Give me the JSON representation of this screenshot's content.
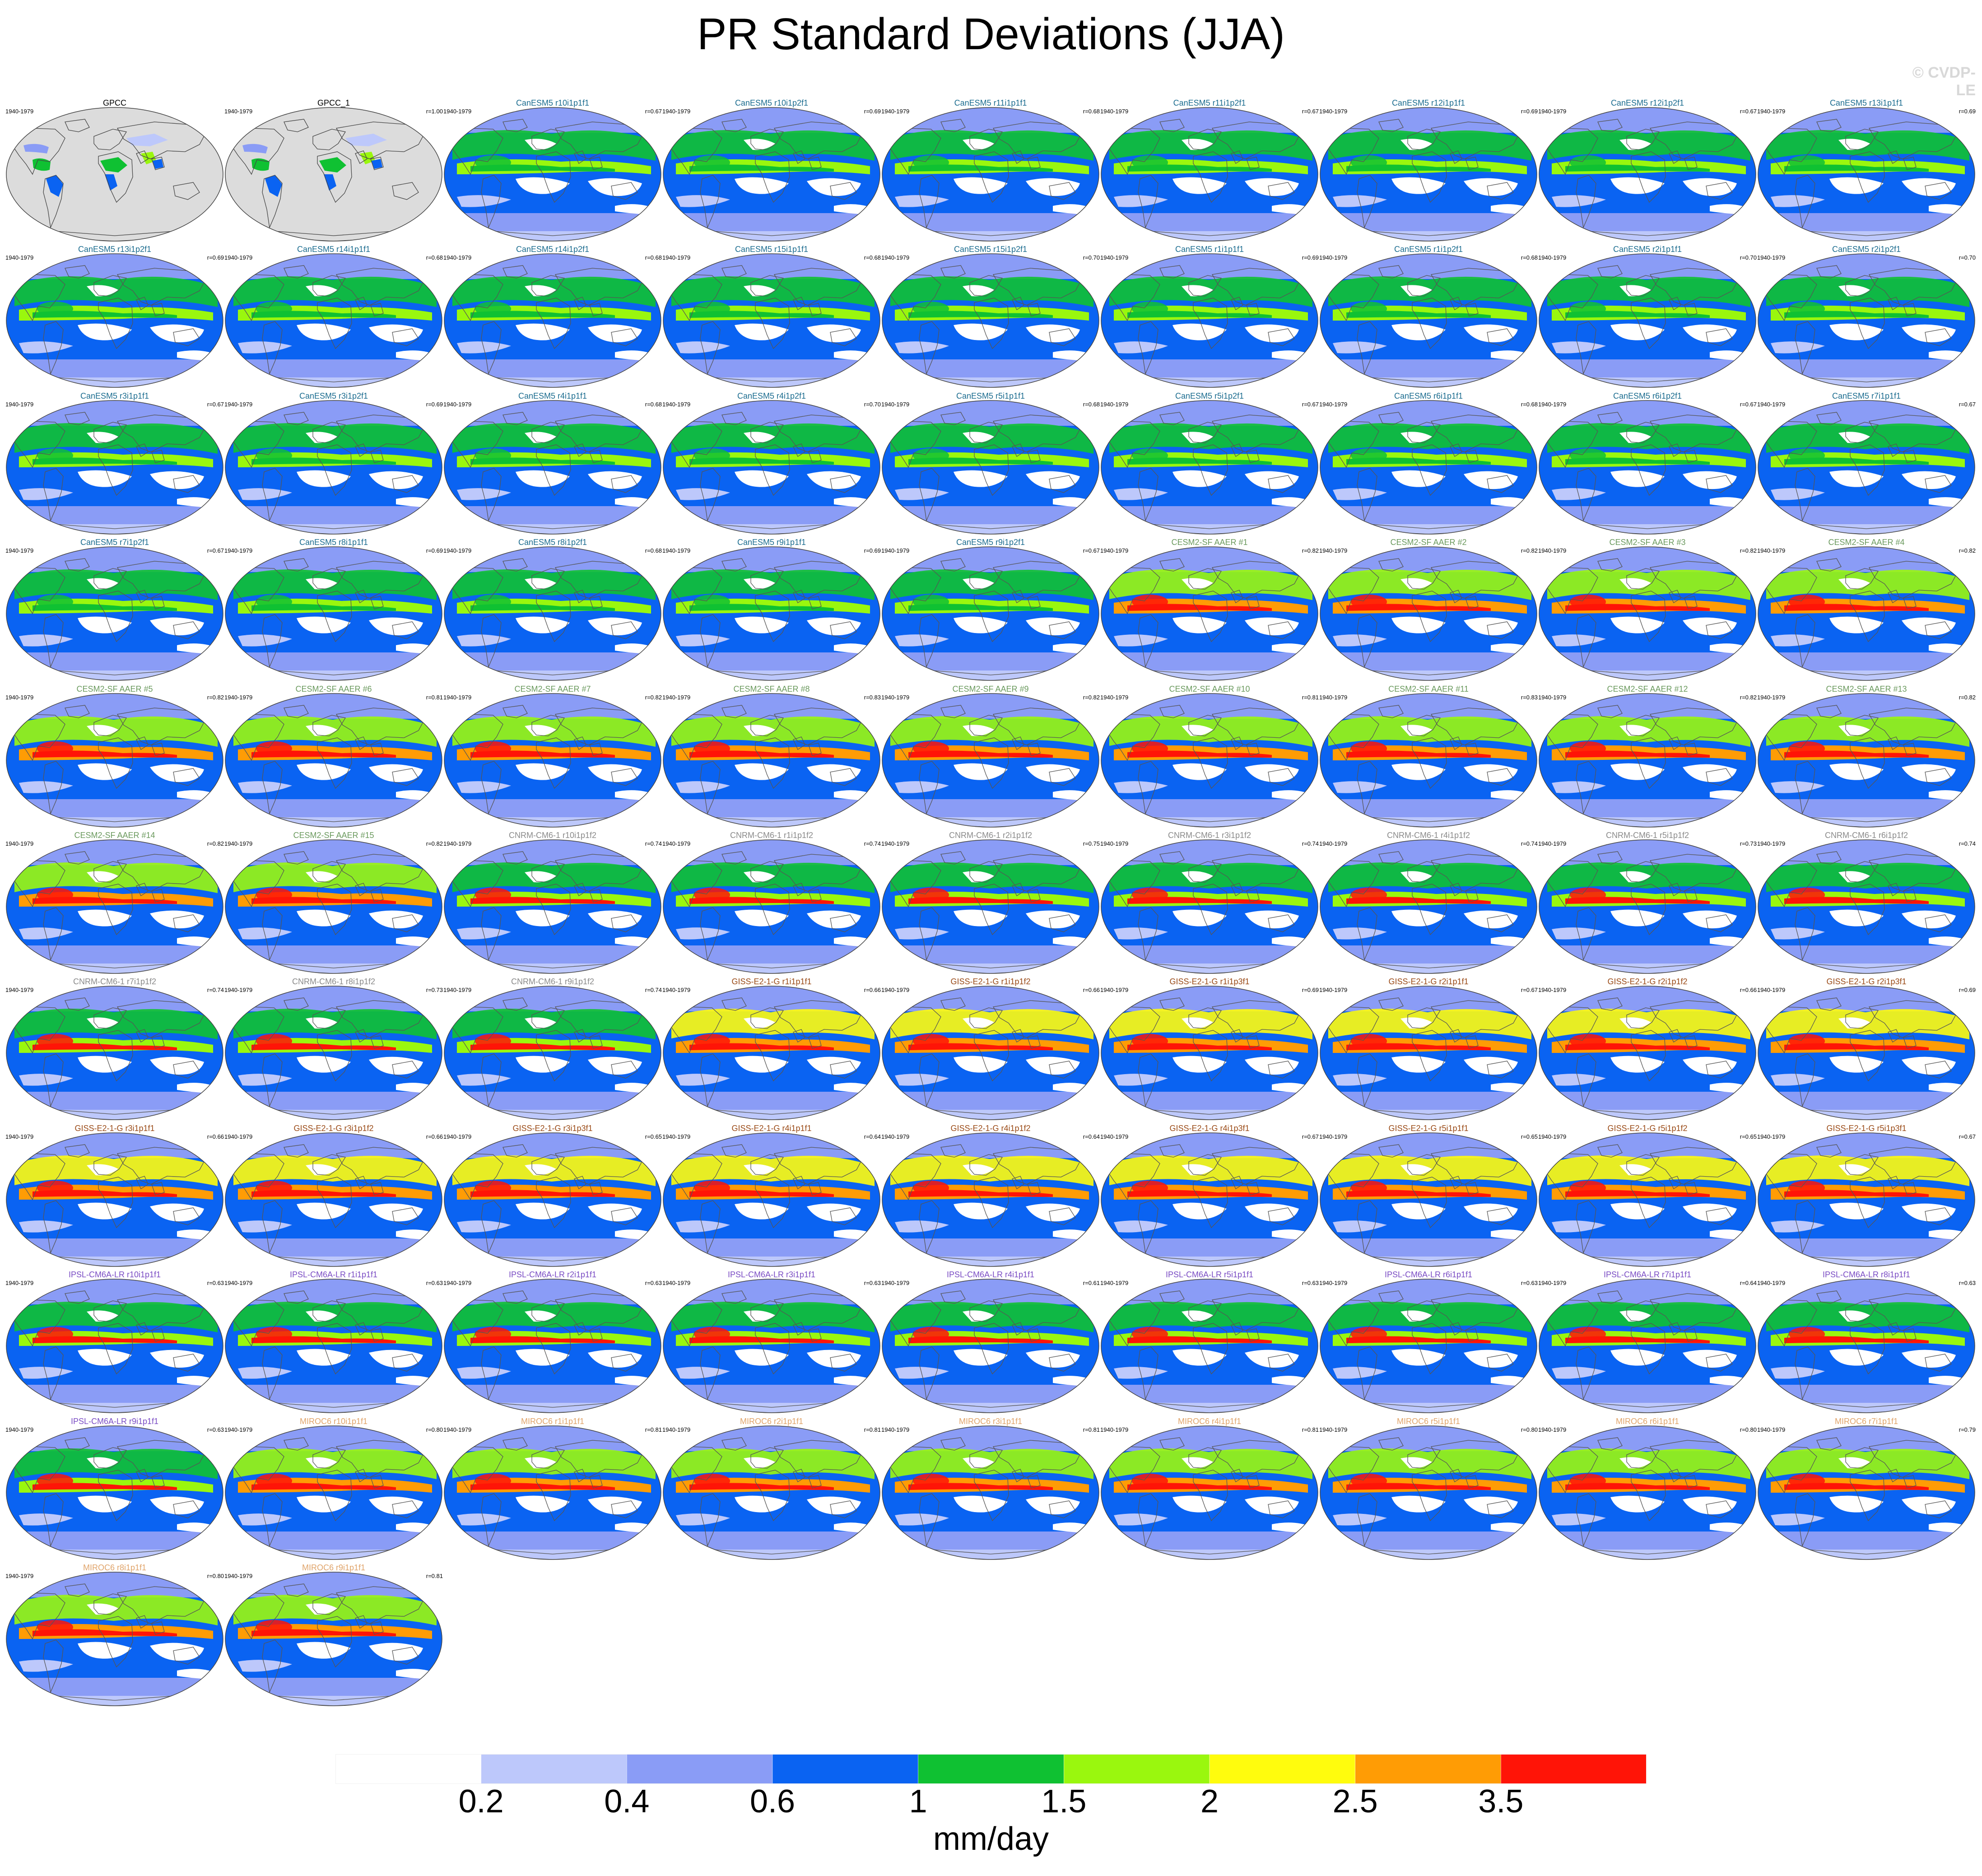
{
  "title": "PR Standard Deviations (JJA)",
  "watermark": "© CVDP-LE",
  "period": "1940-1979",
  "colorbar": {
    "colors": [
      "#ffffff",
      "#bdc8fb",
      "#8a9cf6",
      "#0a63f2",
      "#0fc132",
      "#9af70e",
      "#fffc0d",
      "#ff9c05",
      "#ff1407"
    ],
    "labels": [
      "0.2",
      "0.4",
      "0.6",
      "1",
      "1.5",
      "2",
      "2.5",
      "3.5"
    ],
    "units": "mm/day"
  },
  "model_colors": {
    "obs": "#000000",
    "CanESM5": "#1b6c8f",
    "CESM2-SF AAER": "#6b9a5e",
    "CNRM-CM6-1": "#8a8a8a",
    "GISS-E2-1-G": "#9a4a16",
    "IPSL-CM6A-LR": "#7a4cc4",
    "MIROC6": "#e0a46a"
  },
  "panels": [
    {
      "title": "GPCC",
      "corr": "",
      "group": "obs",
      "style": "obs"
    },
    {
      "title": "GPCC_1",
      "corr": "r=1.00",
      "group": "obs",
      "style": "obs"
    },
    {
      "title": "CanESM5 r10i1p1f1",
      "corr": "r=0.67",
      "group": "CanESM5",
      "style": "can"
    },
    {
      "title": "CanESM5 r10i1p2f1",
      "corr": "r=0.69",
      "group": "CanESM5",
      "style": "can"
    },
    {
      "title": "CanESM5 r11i1p1f1",
      "corr": "r=0.68",
      "group": "CanESM5",
      "style": "can"
    },
    {
      "title": "CanESM5 r11i1p2f1",
      "corr": "r=0.67",
      "group": "CanESM5",
      "style": "can"
    },
    {
      "title": "CanESM5 r12i1p1f1",
      "corr": "r=0.69",
      "group": "CanESM5",
      "style": "can"
    },
    {
      "title": "CanESM5 r12i1p2f1",
      "corr": "r=0.67",
      "group": "CanESM5",
      "style": "can"
    },
    {
      "title": "CanESM5 r13i1p1f1",
      "corr": "r=0.69",
      "group": "CanESM5",
      "style": "can"
    },
    {
      "title": "CanESM5 r13i1p2f1",
      "corr": "r=0.69",
      "group": "CanESM5",
      "style": "can"
    },
    {
      "title": "CanESM5 r14i1p1f1",
      "corr": "r=0.68",
      "group": "CanESM5",
      "style": "can"
    },
    {
      "title": "CanESM5 r14i1p2f1",
      "corr": "r=0.68",
      "group": "CanESM5",
      "style": "can"
    },
    {
      "title": "CanESM5 r15i1p1f1",
      "corr": "r=0.68",
      "group": "CanESM5",
      "style": "can"
    },
    {
      "title": "CanESM5 r15i1p2f1",
      "corr": "r=0.70",
      "group": "CanESM5",
      "style": "can"
    },
    {
      "title": "CanESM5 r1i1p1f1",
      "corr": "r=0.69",
      "group": "CanESM5",
      "style": "can"
    },
    {
      "title": "CanESM5 r1i1p2f1",
      "corr": "r=0.68",
      "group": "CanESM5",
      "style": "can"
    },
    {
      "title": "CanESM5 r2i1p1f1",
      "corr": "r=0.70",
      "group": "CanESM5",
      "style": "can"
    },
    {
      "title": "CanESM5 r2i1p2f1",
      "corr": "r=0.70",
      "group": "CanESM5",
      "style": "can"
    },
    {
      "title": "CanESM5 r3i1p1f1",
      "corr": "r=0.67",
      "group": "CanESM5",
      "style": "can"
    },
    {
      "title": "CanESM5 r3i1p2f1",
      "corr": "r=0.69",
      "group": "CanESM5",
      "style": "can"
    },
    {
      "title": "CanESM5 r4i1p1f1",
      "corr": "r=0.68",
      "group": "CanESM5",
      "style": "can"
    },
    {
      "title": "CanESM5 r4i1p2f1",
      "corr": "r=0.70",
      "group": "CanESM5",
      "style": "can"
    },
    {
      "title": "CanESM5 r5i1p1f1",
      "corr": "r=0.68",
      "group": "CanESM5",
      "style": "can"
    },
    {
      "title": "CanESM5 r5i1p2f1",
      "corr": "r=0.67",
      "group": "CanESM5",
      "style": "can"
    },
    {
      "title": "CanESM5 r6i1p1f1",
      "corr": "r=0.68",
      "group": "CanESM5",
      "style": "can"
    },
    {
      "title": "CanESM5 r6i1p2f1",
      "corr": "r=0.67",
      "group": "CanESM5",
      "style": "can"
    },
    {
      "title": "CanESM5 r7i1p1f1",
      "corr": "r=0.67",
      "group": "CanESM5",
      "style": "can"
    },
    {
      "title": "CanESM5 r7i1p2f1",
      "corr": "r=0.67",
      "group": "CanESM5",
      "style": "can"
    },
    {
      "title": "CanESM5 r8i1p1f1",
      "corr": "r=0.69",
      "group": "CanESM5",
      "style": "can"
    },
    {
      "title": "CanESM5 r8i1p2f1",
      "corr": "r=0.68",
      "group": "CanESM5",
      "style": "can"
    },
    {
      "title": "CanESM5 r9i1p1f1",
      "corr": "r=0.69",
      "group": "CanESM5",
      "style": "can"
    },
    {
      "title": "CanESM5 r9i1p2f1",
      "corr": "r=0.67",
      "group": "CanESM5",
      "style": "can"
    },
    {
      "title": "CESM2-SF AAER #1",
      "corr": "r=0.82",
      "group": "CESM2-SF AAER",
      "style": "cesm"
    },
    {
      "title": "CESM2-SF AAER #2",
      "corr": "r=0.82",
      "group": "CESM2-SF AAER",
      "style": "cesm"
    },
    {
      "title": "CESM2-SF AAER #3",
      "corr": "r=0.82",
      "group": "CESM2-SF AAER",
      "style": "cesm"
    },
    {
      "title": "CESM2-SF AAER #4",
      "corr": "r=0.82",
      "group": "CESM2-SF AAER",
      "style": "cesm"
    },
    {
      "title": "CESM2-SF AAER #5",
      "corr": "r=0.82",
      "group": "CESM2-SF AAER",
      "style": "cesm"
    },
    {
      "title": "CESM2-SF AAER #6",
      "corr": "r=0.81",
      "group": "CESM2-SF AAER",
      "style": "cesm"
    },
    {
      "title": "CESM2-SF AAER #7",
      "corr": "r=0.82",
      "group": "CESM2-SF AAER",
      "style": "cesm"
    },
    {
      "title": "CESM2-SF AAER #8",
      "corr": "r=0.83",
      "group": "CESM2-SF AAER",
      "style": "cesm"
    },
    {
      "title": "CESM2-SF AAER #9",
      "corr": "r=0.82",
      "group": "CESM2-SF AAER",
      "style": "cesm"
    },
    {
      "title": "CESM2-SF AAER #10",
      "corr": "r=0.81",
      "group": "CESM2-SF AAER",
      "style": "cesm"
    },
    {
      "title": "CESM2-SF AAER #11",
      "corr": "r=0.83",
      "group": "CESM2-SF AAER",
      "style": "cesm"
    },
    {
      "title": "CESM2-SF AAER #12",
      "corr": "r=0.82",
      "group": "CESM2-SF AAER",
      "style": "cesm"
    },
    {
      "title": "CESM2-SF AAER #13",
      "corr": "r=0.82",
      "group": "CESM2-SF AAER",
      "style": "cesm"
    },
    {
      "title": "CESM2-SF AAER #14",
      "corr": "r=0.82",
      "group": "CESM2-SF AAER",
      "style": "cesm"
    },
    {
      "title": "CESM2-SF AAER #15",
      "corr": "r=0.82",
      "group": "CESM2-SF AAER",
      "style": "cesm"
    },
    {
      "title": "CNRM-CM6-1 r10i1p1f2",
      "corr": "r=0.74",
      "group": "CNRM-CM6-1",
      "style": "cnrm"
    },
    {
      "title": "CNRM-CM6-1 r1i1p1f2",
      "corr": "r=0.74",
      "group": "CNRM-CM6-1",
      "style": "cnrm"
    },
    {
      "title": "CNRM-CM6-1 r2i1p1f2",
      "corr": "r=0.75",
      "group": "CNRM-CM6-1",
      "style": "cnrm"
    },
    {
      "title": "CNRM-CM6-1 r3i1p1f2",
      "corr": "r=0.74",
      "group": "CNRM-CM6-1",
      "style": "cnrm"
    },
    {
      "title": "CNRM-CM6-1 r4i1p1f2",
      "corr": "r=0.74",
      "group": "CNRM-CM6-1",
      "style": "cnrm"
    },
    {
      "title": "CNRM-CM6-1 r5i1p1f2",
      "corr": "r=0.73",
      "group": "CNRM-CM6-1",
      "style": "cnrm"
    },
    {
      "title": "CNRM-CM6-1 r6i1p1f2",
      "corr": "r=0.74",
      "group": "CNRM-CM6-1",
      "style": "cnrm"
    },
    {
      "title": "CNRM-CM6-1 r7i1p1f2",
      "corr": "r=0.74",
      "group": "CNRM-CM6-1",
      "style": "cnrm"
    },
    {
      "title": "CNRM-CM6-1 r8i1p1f2",
      "corr": "r=0.73",
      "group": "CNRM-CM6-1",
      "style": "cnrm"
    },
    {
      "title": "CNRM-CM6-1 r9i1p1f2",
      "corr": "r=0.74",
      "group": "CNRM-CM6-1",
      "style": "cnrm"
    },
    {
      "title": "GISS-E2-1-G r1i1p1f1",
      "corr": "r=0.66",
      "group": "GISS-E2-1-G",
      "style": "giss"
    },
    {
      "title": "GISS-E2-1-G r1i1p1f2",
      "corr": "r=0.66",
      "group": "GISS-E2-1-G",
      "style": "giss"
    },
    {
      "title": "GISS-E2-1-G r1i1p3f1",
      "corr": "r=0.69",
      "group": "GISS-E2-1-G",
      "style": "giss"
    },
    {
      "title": "GISS-E2-1-G r2i1p1f1",
      "corr": "r=0.67",
      "group": "GISS-E2-1-G",
      "style": "giss"
    },
    {
      "title": "GISS-E2-1-G r2i1p1f2",
      "corr": "r=0.66",
      "group": "GISS-E2-1-G",
      "style": "giss"
    },
    {
      "title": "GISS-E2-1-G r2i1p3f1",
      "corr": "r=0.69",
      "group": "GISS-E2-1-G",
      "style": "giss"
    },
    {
      "title": "GISS-E2-1-G r3i1p1f1",
      "corr": "r=0.66",
      "group": "GISS-E2-1-G",
      "style": "giss"
    },
    {
      "title": "GISS-E2-1-G r3i1p1f2",
      "corr": "r=0.66",
      "group": "GISS-E2-1-G",
      "style": "giss"
    },
    {
      "title": "GISS-E2-1-G r3i1p3f1",
      "corr": "r=0.65",
      "group": "GISS-E2-1-G",
      "style": "giss"
    },
    {
      "title": "GISS-E2-1-G r4i1p1f1",
      "corr": "r=0.64",
      "group": "GISS-E2-1-G",
      "style": "giss"
    },
    {
      "title": "GISS-E2-1-G r4i1p1f2",
      "corr": "r=0.64",
      "group": "GISS-E2-1-G",
      "style": "giss"
    },
    {
      "title": "GISS-E2-1-G r4i1p3f1",
      "corr": "r=0.67",
      "group": "GISS-E2-1-G",
      "style": "giss"
    },
    {
      "title": "GISS-E2-1-G r5i1p1f1",
      "corr": "r=0.65",
      "group": "GISS-E2-1-G",
      "style": "giss"
    },
    {
      "title": "GISS-E2-1-G r5i1p1f2",
      "corr": "r=0.65",
      "group": "GISS-E2-1-G",
      "style": "giss"
    },
    {
      "title": "GISS-E2-1-G r5i1p3f1",
      "corr": "r=0.67",
      "group": "GISS-E2-1-G",
      "style": "giss"
    },
    {
      "title": "IPSL-CM6A-LR r10i1p1f1",
      "corr": "r=0.63",
      "group": "IPSL-CM6A-LR",
      "style": "ipsl"
    },
    {
      "title": "IPSL-CM6A-LR r1i1p1f1",
      "corr": "r=0.63",
      "group": "IPSL-CM6A-LR",
      "style": "ipsl"
    },
    {
      "title": "IPSL-CM6A-LR r2i1p1f1",
      "corr": "r=0.63",
      "group": "IPSL-CM6A-LR",
      "style": "ipsl"
    },
    {
      "title": "IPSL-CM6A-LR r3i1p1f1",
      "corr": "r=0.63",
      "group": "IPSL-CM6A-LR",
      "style": "ipsl"
    },
    {
      "title": "IPSL-CM6A-LR r4i1p1f1",
      "corr": "r=0.61",
      "group": "IPSL-CM6A-LR",
      "style": "ipsl"
    },
    {
      "title": "IPSL-CM6A-LR r5i1p1f1",
      "corr": "r=0.63",
      "group": "IPSL-CM6A-LR",
      "style": "ipsl"
    },
    {
      "title": "IPSL-CM6A-LR r6i1p1f1",
      "corr": "r=0.63",
      "group": "IPSL-CM6A-LR",
      "style": "ipsl"
    },
    {
      "title": "IPSL-CM6A-LR r7i1p1f1",
      "corr": "r=0.64",
      "group": "IPSL-CM6A-LR",
      "style": "ipsl"
    },
    {
      "title": "IPSL-CM6A-LR r8i1p1f1",
      "corr": "r=0.63",
      "group": "IPSL-CM6A-LR",
      "style": "ipsl"
    },
    {
      "title": "IPSL-CM6A-LR r9i1p1f1",
      "corr": "r=0.63",
      "group": "IPSL-CM6A-LR",
      "style": "ipsl"
    },
    {
      "title": "MIROC6 r10i1p1f1",
      "corr": "r=0.80",
      "group": "MIROC6",
      "style": "miroc"
    },
    {
      "title": "MIROC6 r1i1p1f1",
      "corr": "r=0.81",
      "group": "MIROC6",
      "style": "miroc"
    },
    {
      "title": "MIROC6 r2i1p1f1",
      "corr": "r=0.81",
      "group": "MIROC6",
      "style": "miroc"
    },
    {
      "title": "MIROC6 r3i1p1f1",
      "corr": "r=0.81",
      "group": "MIROC6",
      "style": "miroc"
    },
    {
      "title": "MIROC6 r4i1p1f1",
      "corr": "r=0.81",
      "group": "MIROC6",
      "style": "miroc"
    },
    {
      "title": "MIROC6 r5i1p1f1",
      "corr": "r=0.80",
      "group": "MIROC6",
      "style": "miroc"
    },
    {
      "title": "MIROC6 r6i1p1f1",
      "corr": "r=0.80",
      "group": "MIROC6",
      "style": "miroc"
    },
    {
      "title": "MIROC6 r7i1p1f1",
      "corr": "r=0.79",
      "group": "MIROC6",
      "style": "miroc"
    },
    {
      "title": "MIROC6 r8i1p1f1",
      "corr": "r=0.80",
      "group": "MIROC6",
      "style": "miroc"
    },
    {
      "title": "MIROC6 r9i1p1f1",
      "corr": "r=0.81",
      "group": "MIROC6",
      "style": "miroc"
    }
  ]
}
